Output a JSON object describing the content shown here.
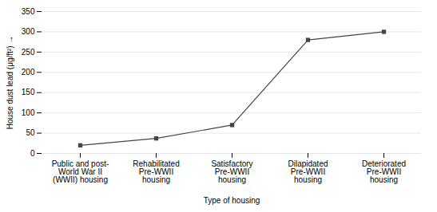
{
  "chart_data": {
    "type": "line",
    "categories": [
      "Public and post-\nWorld War II\n(WWII) housing",
      "Rehabilitated\nPre-WWII\nhousing",
      "Satisfactory\nPre-WWII\nhousing",
      "Dilapidated\nPre-WWII\nhousing",
      "Deteriorated\nPre-WWII\nhousing"
    ],
    "values": [
      20,
      37,
      70,
      280,
      300
    ],
    "xlabel": "Type of housing",
    "ylabel": "House dust lead (μg/ft²)",
    "ylim": [
      0,
      350
    ],
    "yticks": [
      0,
      50,
      100,
      150,
      200,
      250,
      300,
      350
    ],
    "color": "#444444",
    "marker": "square",
    "grid": true
  }
}
